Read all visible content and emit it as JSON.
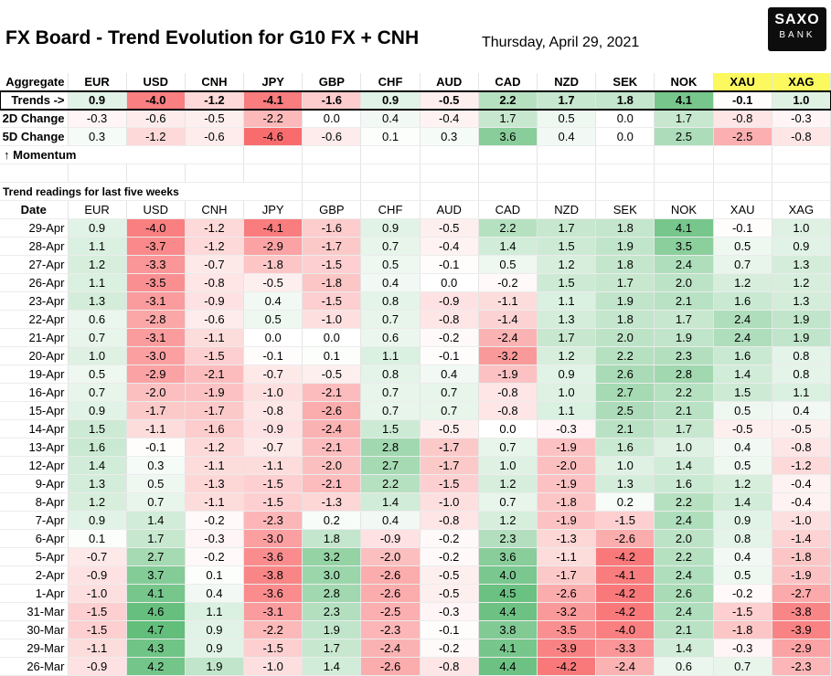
{
  "header": {
    "title": "FX Board - Trend Evolution for G10 FX + CNH",
    "date": "Thursday, April 29, 2021",
    "logo_top": "SAXO",
    "logo_bottom": "BANK"
  },
  "summary": {
    "corner_label": "Aggregate",
    "currencies": [
      "EUR",
      "USD",
      "CNH",
      "JPY",
      "GBP",
      "CHF",
      "AUD",
      "CAD",
      "NZD",
      "SEK",
      "NOK",
      "XAU",
      "XAG"
    ],
    "rows": [
      {
        "label": "Trends ->",
        "values": [
          "0.9",
          "-4.0",
          "-1.2",
          "-4.1",
          "-1.6",
          "0.9",
          "-0.5",
          "2.2",
          "1.7",
          "1.8",
          "4.1",
          "-0.1",
          "1.0"
        ]
      },
      {
        "label": "2D Change",
        "values": [
          "-0.3",
          "-0.6",
          "-0.5",
          "-2.2",
          "0.0",
          "0.4",
          "-0.4",
          "1.7",
          "0.5",
          "0.0",
          "1.7",
          "-0.8",
          "-0.3"
        ]
      },
      {
        "label": "5D Change",
        "values": [
          "0.3",
          "-1.2",
          "-0.6",
          "-4.6",
          "-0.6",
          "0.1",
          "0.3",
          "3.6",
          "0.4",
          "0.0",
          "2.5",
          "-2.5",
          "-0.8"
        ]
      }
    ],
    "momentum_label": "↑ Momentum"
  },
  "weekly": {
    "section_title": "Trend readings for last five weeks",
    "date_header": "Date",
    "currencies": [
      "EUR",
      "USD",
      "CNH",
      "JPY",
      "GBP",
      "CHF",
      "AUD",
      "CAD",
      "NZD",
      "SEK",
      "NOK",
      "XAU",
      "XAG"
    ],
    "rows": [
      {
        "date": "29-Apr",
        "values": [
          "0.9",
          "-4.0",
          "-1.2",
          "-4.1",
          "-1.6",
          "0.9",
          "-0.5",
          "2.2",
          "1.7",
          "1.8",
          "4.1",
          "-0.1",
          "1.0"
        ]
      },
      {
        "date": "28-Apr",
        "values": [
          "1.1",
          "-3.7",
          "-1.2",
          "-2.9",
          "-1.7",
          "0.7",
          "-0.4",
          "1.4",
          "1.5",
          "1.9",
          "3.5",
          "0.5",
          "0.9"
        ]
      },
      {
        "date": "27-Apr",
        "values": [
          "1.2",
          "-3.3",
          "-0.7",
          "-1.8",
          "-1.5",
          "0.5",
          "-0.1",
          "0.5",
          "1.2",
          "1.8",
          "2.4",
          "0.7",
          "1.3"
        ]
      },
      {
        "date": "26-Apr",
        "values": [
          "1.1",
          "-3.5",
          "-0.8",
          "-0.5",
          "-1.8",
          "0.4",
          "0.0",
          "-0.2",
          "1.5",
          "1.7",
          "2.0",
          "1.2",
          "1.2"
        ]
      },
      {
        "date": "23-Apr",
        "values": [
          "1.3",
          "-3.1",
          "-0.9",
          "0.4",
          "-1.5",
          "0.8",
          "-0.9",
          "-1.1",
          "1.1",
          "1.9",
          "2.1",
          "1.6",
          "1.3"
        ]
      },
      {
        "date": "22-Apr",
        "values": [
          "0.6",
          "-2.8",
          "-0.6",
          "0.5",
          "-1.0",
          "0.7",
          "-0.8",
          "-1.4",
          "1.3",
          "1.8",
          "1.7",
          "2.4",
          "1.9"
        ]
      },
      {
        "date": "21-Apr",
        "values": [
          "0.7",
          "-3.1",
          "-1.1",
          "0.0",
          "0.0",
          "0.6",
          "-0.2",
          "-2.4",
          "1.7",
          "2.0",
          "1.9",
          "2.4",
          "1.9"
        ]
      },
      {
        "date": "20-Apr",
        "values": [
          "1.0",
          "-3.0",
          "-1.5",
          "-0.1",
          "0.1",
          "1.1",
          "-0.1",
          "-3.2",
          "1.2",
          "2.2",
          "2.3",
          "1.6",
          "0.8"
        ]
      },
      {
        "date": "19-Apr",
        "values": [
          "0.5",
          "-2.9",
          "-2.1",
          "-0.7",
          "-0.5",
          "0.8",
          "0.4",
          "-1.9",
          "0.9",
          "2.6",
          "2.8",
          "1.4",
          "0.8"
        ]
      },
      {
        "date": "16-Apr",
        "values": [
          "0.7",
          "-2.0",
          "-1.9",
          "-1.0",
          "-2.1",
          "0.7",
          "0.7",
          "-0.8",
          "1.0",
          "2.7",
          "2.2",
          "1.5",
          "1.1"
        ]
      },
      {
        "date": "15-Apr",
        "values": [
          "0.9",
          "-1.7",
          "-1.7",
          "-0.8",
          "-2.6",
          "0.7",
          "0.7",
          "-0.8",
          "1.1",
          "2.5",
          "2.1",
          "0.5",
          "0.4"
        ]
      },
      {
        "date": "14-Apr",
        "values": [
          "1.5",
          "-1.1",
          "-1.6",
          "-0.9",
          "-2.4",
          "1.5",
          "-0.5",
          "0.0",
          "-0.3",
          "2.1",
          "1.7",
          "-0.5",
          "-0.5"
        ]
      },
      {
        "date": "13-Apr",
        "values": [
          "1.6",
          "-0.1",
          "-1.2",
          "-0.7",
          "-2.1",
          "2.8",
          "-1.7",
          "0.7",
          "-1.9",
          "1.6",
          "1.0",
          "0.4",
          "-0.8"
        ]
      },
      {
        "date": "12-Apr",
        "values": [
          "1.4",
          "0.3",
          "-1.1",
          "-1.1",
          "-2.0",
          "2.7",
          "-1.7",
          "1.0",
          "-2.0",
          "1.0",
          "1.4",
          "0.5",
          "-1.2"
        ]
      },
      {
        "date": "9-Apr",
        "values": [
          "1.3",
          "0.5",
          "-1.3",
          "-1.5",
          "-2.1",
          "2.2",
          "-1.5",
          "1.2",
          "-1.9",
          "1.3",
          "1.6",
          "1.2",
          "-0.4"
        ]
      },
      {
        "date": "8-Apr",
        "values": [
          "1.2",
          "0.7",
          "-1.1",
          "-1.5",
          "-1.3",
          "1.4",
          "-1.0",
          "0.7",
          "-1.8",
          "0.2",
          "2.2",
          "1.4",
          "-0.4"
        ]
      },
      {
        "date": "7-Apr",
        "values": [
          "0.9",
          "1.4",
          "-0.2",
          "-2.3",
          "0.2",
          "0.4",
          "-0.8",
          "1.2",
          "-1.9",
          "-1.5",
          "2.4",
          "0.9",
          "-1.0"
        ]
      },
      {
        "date": "6-Apr",
        "values": [
          "0.1",
          "1.7",
          "-0.3",
          "-3.0",
          "1.8",
          "-0.9",
          "-0.2",
          "2.3",
          "-1.3",
          "-2.6",
          "2.0",
          "0.8",
          "-1.4"
        ]
      },
      {
        "date": "5-Apr",
        "values": [
          "-0.7",
          "2.7",
          "-0.2",
          "-3.6",
          "3.2",
          "-2.0",
          "-0.2",
          "3.6",
          "-1.1",
          "-4.2",
          "2.2",
          "0.4",
          "-1.8"
        ]
      },
      {
        "date": "2-Apr",
        "values": [
          "-0.9",
          "3.7",
          "0.1",
          "-3.8",
          "3.0",
          "-2.6",
          "-0.5",
          "4.0",
          "-1.7",
          "-4.1",
          "2.4",
          "0.5",
          "-1.9"
        ]
      },
      {
        "date": "1-Apr",
        "values": [
          "-1.0",
          "4.1",
          "0.4",
          "-3.6",
          "2.8",
          "-2.6",
          "-0.5",
          "4.5",
          "-2.6",
          "-4.2",
          "2.6",
          "-0.2",
          "-2.7"
        ]
      },
      {
        "date": "31-Mar",
        "values": [
          "-1.5",
          "4.6",
          "1.1",
          "-3.1",
          "2.3",
          "-2.5",
          "-0.3",
          "4.4",
          "-3.2",
          "-4.2",
          "2.4",
          "-1.5",
          "-3.8"
        ]
      },
      {
        "date": "30-Mar",
        "values": [
          "-1.5",
          "4.7",
          "0.9",
          "-2.2",
          "1.9",
          "-2.3",
          "-0.1",
          "3.8",
          "-3.5",
          "-4.0",
          "2.1",
          "-1.8",
          "-3.9"
        ]
      },
      {
        "date": "29-Mar",
        "values": [
          "-1.1",
          "4.3",
          "0.9",
          "-1.5",
          "1.7",
          "-2.4",
          "-0.2",
          "4.1",
          "-3.9",
          "-3.3",
          "1.4",
          "-0.3",
          "-2.9"
        ]
      },
      {
        "date": "26-Mar",
        "values": [
          "-0.9",
          "4.2",
          "1.9",
          "-1.0",
          "1.4",
          "-2.6",
          "-0.8",
          "4.4",
          "-4.2",
          "-2.4",
          "0.6",
          "0.7",
          "-2.3"
        ]
      }
    ]
  },
  "chart_data": {
    "type": "heatmap",
    "title": "FX Board - Trend Evolution for G10 FX + CNH",
    "subtitle": "Thursday, April 29, 2021",
    "colors": {
      "positive": "#63be7b",
      "negative": "#f8696b",
      "neutral": "#ffffff",
      "metal_header": "#fbf95e"
    }
  }
}
